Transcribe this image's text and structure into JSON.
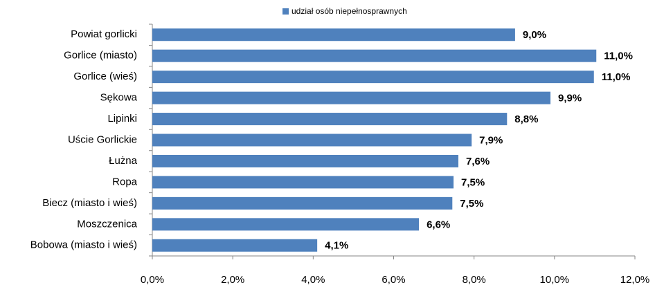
{
  "chart_data": {
    "type": "barh",
    "legend": "udział osób niepełnosprawnych",
    "color": "#4f81bd",
    "categories": [
      "Powiat gorlicki",
      "Gorlice (miasto)",
      "Gorlice (wieś)",
      "Sękowa",
      "Lipinki",
      "Uście Gorlickie",
      "Łużna",
      "Ropa",
      "Biecz (miasto  i wieś)",
      "Moszczenica",
      "Bobowa (miasto  i wieś)"
    ],
    "values": [
      9.02,
      11.04,
      10.98,
      9.9,
      8.82,
      7.94,
      7.61,
      7.49,
      7.46,
      6.63,
      4.1
    ],
    "value_labels": [
      "9,0%",
      "11,0%",
      "11,0%",
      "9,9%",
      "8,8%",
      "7,9%",
      "7,6%",
      "7,5%",
      "7,5%",
      "6,6%",
      "4,1%"
    ],
    "xlim": [
      0,
      12
    ],
    "xticks": [
      {
        "value": 0,
        "label": "0,0%"
      },
      {
        "value": 2,
        "label": "2,0%"
      },
      {
        "value": 4,
        "label": "4,0%"
      },
      {
        "value": 6,
        "label": "6,0%"
      },
      {
        "value": 8,
        "label": "8,0%"
      },
      {
        "value": 10,
        "label": "10,0%"
      },
      {
        "value": 12,
        "label": "12,0%"
      }
    ]
  }
}
